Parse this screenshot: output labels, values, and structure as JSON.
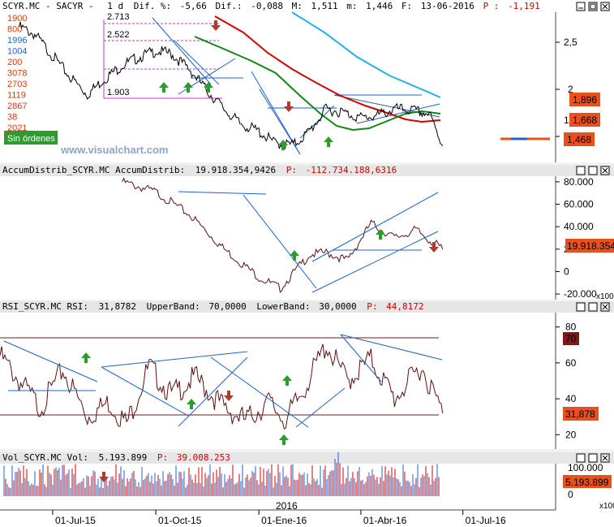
{
  "colors": {
    "bg": "#ffffff",
    "price": "#000000",
    "ma_red": "#d40000",
    "ma_green": "#118811",
    "ma_cyan": "#1fb0e8",
    "trend": "#1e64c8",
    "indicator": "#5b1010",
    "band": "#7a1a1a",
    "arrow_up": "#2e9b2e",
    "arrow_down": "#b03a2e",
    "value_box": "#e8501e",
    "fib": "#c040c0"
  },
  "panel1": {
    "header": {
      "symbol": "SCYR.MC - SACYR -",
      "period": "1 d",
      "dif_label": "Dif. %:",
      "dif_pct": "-5,66",
      "dif_abs_label": "Dif.:",
      "dif_abs": "-0,088",
      "max_label": "M:",
      "max": "1,511",
      "min_label": "m:",
      "min": "1,446",
      "date_label": "F:",
      "date": "13-06-2016",
      "p_label": "P :",
      "p_value": "-1,191"
    },
    "left_numbers": [
      "1900",
      "800",
      "1996",
      "1004",
      "200",
      "3078",
      "2703",
      "1119",
      "2867",
      "38",
      "2021",
      "1119"
    ],
    "fib_labels": [
      "2.713",
      "2.522",
      "1.903"
    ],
    "sin_ordenes": "Sin órdenes",
    "watermark": "www.visualchart.com",
    "y_ticks": [
      "2,5",
      "2",
      "1,5"
    ],
    "value_boxes": [
      "1,896",
      "1,668",
      "1,468"
    ]
  },
  "panel2": {
    "header": {
      "name": "AccumDistrib_SCYR.MC AccumDistrib:",
      "value": "19.918.354,9426",
      "p_label": "P:",
      "p_value": "-112.734.188,6316"
    },
    "y_ticks": [
      "80.000",
      "60.000",
      "40.000",
      "20.000",
      "0",
      "-20.000"
    ],
    "value_box": "19.918.354",
    "scale": "x1000"
  },
  "panel3": {
    "header": {
      "name": "RSI_SCYR.MC RSI:",
      "value": "31,8782",
      "upper_label": "UpperBand:",
      "upper": "70,0000",
      "lower_label": "LowerBand:",
      "lower": "30,0000",
      "p_label": "P:",
      "p_value": "44,8172"
    },
    "y_ticks": [
      "80",
      "60",
      "40",
      "20"
    ],
    "band_box": "70",
    "value_box": "31,878"
  },
  "panel4": {
    "header": {
      "name": "Vol_SCYR.MC Vol:",
      "value": "5.193.899",
      "p_label": "P:",
      "p_value": "39.008.253"
    },
    "y_ticks": [
      "100.000",
      "50",
      "0"
    ],
    "value_box": "5.193.899",
    "scale": "x100"
  },
  "x_axis": {
    "year_label": "2016",
    "labels": [
      "01-Jul-15",
      "01-Oct-15",
      "01-Ene-16",
      "01-Abr-16",
      "01-Jul-16"
    ]
  },
  "chart_data": [
    {
      "type": "line",
      "title": "SCYR.MC - SACYR",
      "x_range": [
        "2015-05-15",
        "2016-07-15"
      ],
      "ylim": [
        1.3,
        2.85
      ],
      "y_ticks": [
        1.5,
        2.0,
        2.5
      ],
      "series": [
        {
          "values_by_date": [
            [
              "2015-06-01",
              2.7
            ],
            [
              "2015-06-15",
              2.62
            ],
            [
              "2015-07-01",
              2.4
            ],
            [
              "2015-07-15",
              2.2
            ],
            [
              "2015-08-01",
              2.0
            ],
            [
              "2015-08-15",
              2.15
            ],
            [
              "2015-09-01",
              2.3
            ],
            [
              "2015-09-15",
              2.38
            ],
            [
              "2015-10-01",
              2.45
            ],
            [
              "2015-10-15",
              2.42
            ],
            [
              "2015-11-01",
              2.25
            ],
            [
              "2015-11-15",
              2.05
            ],
            [
              "2015-12-01",
              1.85
            ],
            [
              "2015-12-15",
              1.7
            ],
            [
              "2016-01-01",
              1.62
            ],
            [
              "2016-01-15",
              1.5
            ],
            [
              "2016-02-01",
              1.48
            ],
            [
              "2016-02-15",
              1.62
            ],
            [
              "2016-03-01",
              1.85
            ],
            [
              "2016-03-15",
              1.82
            ],
            [
              "2016-04-01",
              1.76
            ],
            [
              "2016-04-15",
              1.78
            ],
            [
              "2016-05-01",
              1.85
            ],
            [
              "2016-05-15",
              1.84
            ],
            [
              "2016-06-01",
              1.8
            ],
            [
              "2016-06-13",
              1.47
            ]
          ]
        }
      ]
    },
    {
      "type": "line",
      "title": "AccumDistrib",
      "ylim": [
        -25000,
        85000
      ],
      "y_ticks": [
        -20000,
        0,
        20000,
        40000,
        60000,
        80000
      ],
      "series": [
        {
          "values_by_date": [
            [
              "2015-09-01",
              80000
            ],
            [
              "2015-10-01",
              71000
            ],
            [
              "2015-11-01",
              50000
            ],
            [
              "2015-12-01",
              20000
            ],
            [
              "2016-01-01",
              -5000
            ],
            [
              "2016-01-20",
              -15000
            ],
            [
              "2016-02-15",
              15000
            ],
            [
              "2016-03-01",
              17000
            ],
            [
              "2016-03-20",
              10000
            ],
            [
              "2016-04-10",
              43000
            ],
            [
              "2016-05-01",
              30000
            ],
            [
              "2016-05-20",
              37000
            ],
            [
              "2016-06-13",
              19918
            ]
          ]
        }
      ]
    },
    {
      "type": "line",
      "title": "RSI",
      "ylim": [
        12,
        88
      ],
      "y_ticks": [
        20,
        40,
        60,
        80
      ],
      "bands": {
        "upper": 70,
        "lower": 30
      },
      "series": [
        {
          "values_by_date": [
            [
              "2015-05-15",
              64
            ],
            [
              "2015-06-01",
              50
            ],
            [
              "2015-06-20",
              35
            ],
            [
              "2015-07-10",
              56
            ],
            [
              "2015-08-01",
              30
            ],
            [
              "2015-08-20",
              38
            ],
            [
              "2015-09-05",
              26
            ],
            [
              "2015-09-25",
              58
            ],
            [
              "2015-10-15",
              42
            ],
            [
              "2015-11-05",
              52
            ],
            [
              "2015-12-01",
              35
            ],
            [
              "2015-12-20",
              28
            ],
            [
              "2016-01-10",
              38
            ],
            [
              "2016-01-25",
              28
            ],
            [
              "2016-02-10",
              45
            ],
            [
              "2016-03-01",
              70
            ],
            [
              "2016-03-20",
              50
            ],
            [
              "2016-04-10",
              62
            ],
            [
              "2016-05-01",
              40
            ],
            [
              "2016-05-25",
              58
            ],
            [
              "2016-06-13",
              31.88
            ]
          ]
        }
      ]
    },
    {
      "type": "bar",
      "title": "Vol",
      "ylim": [
        0,
        110
      ],
      "y_ticks": [
        0,
        50,
        100
      ]
    }
  ]
}
